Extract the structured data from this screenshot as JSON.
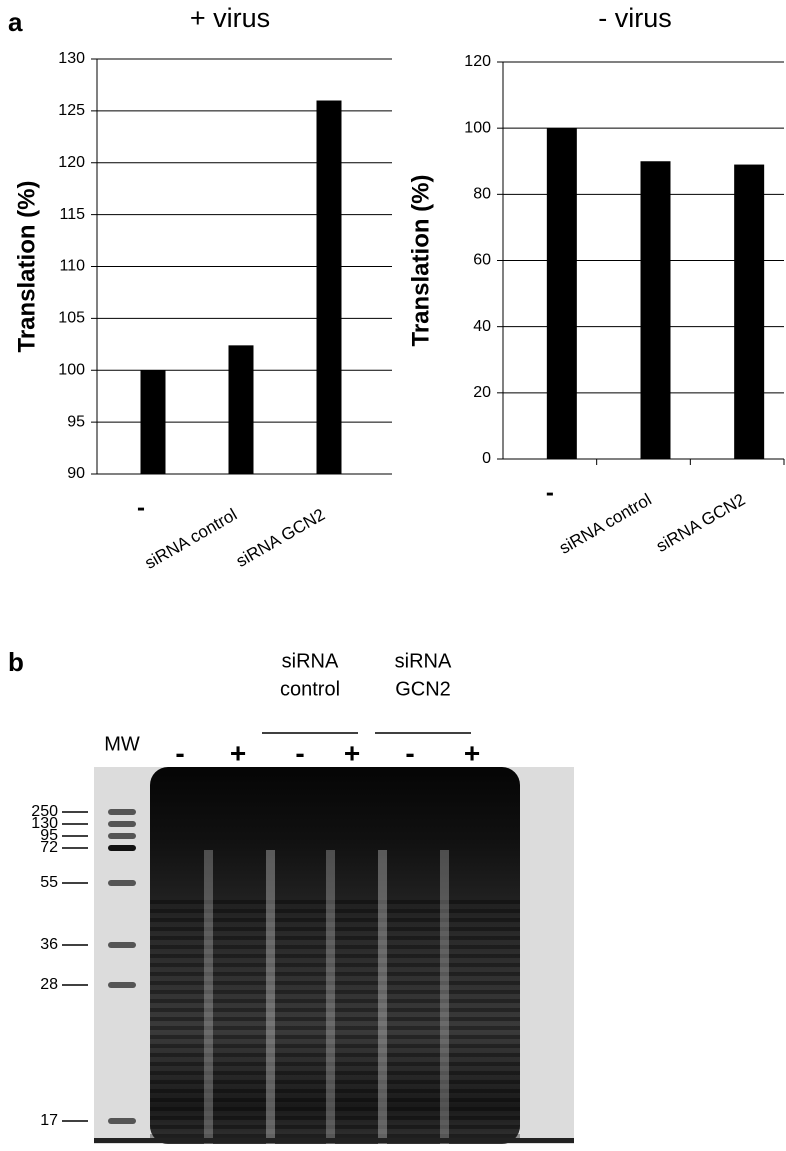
{
  "panel_labels": [
    "a",
    "b"
  ],
  "chart_data": [
    {
      "type": "bar",
      "title": "+ virus",
      "y_label": "Translation (%)",
      "categories": [
        "-",
        "siRNA control",
        "siRNA GCN2"
      ],
      "values": [
        100,
        102.4,
        126
      ],
      "color": "#000000",
      "ylim": [
        90,
        130
      ],
      "yticks": [
        90,
        95,
        100,
        105,
        110,
        115,
        120,
        125,
        130
      ],
      "grid": true,
      "x_tick_marks": false
    },
    {
      "type": "bar",
      "title": "- virus",
      "y_label": "Translation (%)",
      "categories": [
        "-",
        "siRNA control",
        "siRNA GCN2"
      ],
      "values": [
        100,
        90,
        89
      ],
      "color": "#000000",
      "ylim": [
        0,
        120
      ],
      "yticks": [
        0,
        20,
        40,
        60,
        80,
        100,
        120
      ],
      "grid": true,
      "x_tick_marks": true
    }
  ],
  "gel": {
    "groups": [
      [
        "siRNA",
        "control"
      ],
      [
        "siRNA",
        "GCN2"
      ]
    ],
    "lanes": [
      "MW",
      "-",
      "+",
      "-",
      "+",
      "-",
      "+"
    ],
    "markers": [
      250,
      130,
      95,
      72,
      55,
      36,
      28,
      17
    ]
  }
}
